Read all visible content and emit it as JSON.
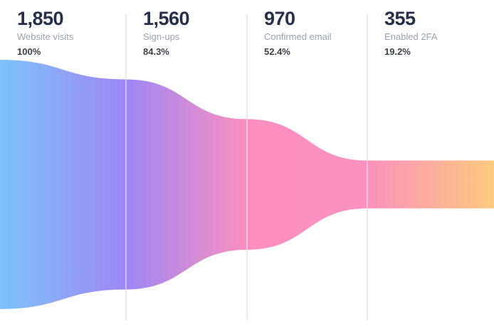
{
  "page": {
    "background": "#ffffff"
  },
  "chart_data": {
    "type": "funnel",
    "orientation": "horizontal",
    "title": "",
    "legend": "none",
    "gridlines": true,
    "stages": [
      {
        "value": 1850,
        "value_display": "1,850",
        "label": "Website visits",
        "percent": 100,
        "percent_display": "100%"
      },
      {
        "value": 1560,
        "value_display": "1,560",
        "label": "Sign-ups",
        "percent": 84.3,
        "percent_display": "84.3%"
      },
      {
        "value": 970,
        "value_display": "970",
        "label": "Confirmed email",
        "percent": 52.4,
        "percent_display": "52.4%"
      },
      {
        "value": 355,
        "value_display": "355",
        "label": "Enabled 2FA",
        "percent": 19.2,
        "percent_display": "19.2%"
      }
    ],
    "gradient_stops": [
      "#7EC2FA",
      "#9D87F5",
      "#FC8FBE",
      "#FC90BE",
      "#FDCA7E"
    ]
  },
  "colors": {
    "value_text": "#27304A",
    "label_text": "#9AA3B2",
    "percent_text": "#3A414D",
    "gridline": "#E3E4E8",
    "gridline_over_funnel": "rgba(255,255,255,0.6)"
  }
}
